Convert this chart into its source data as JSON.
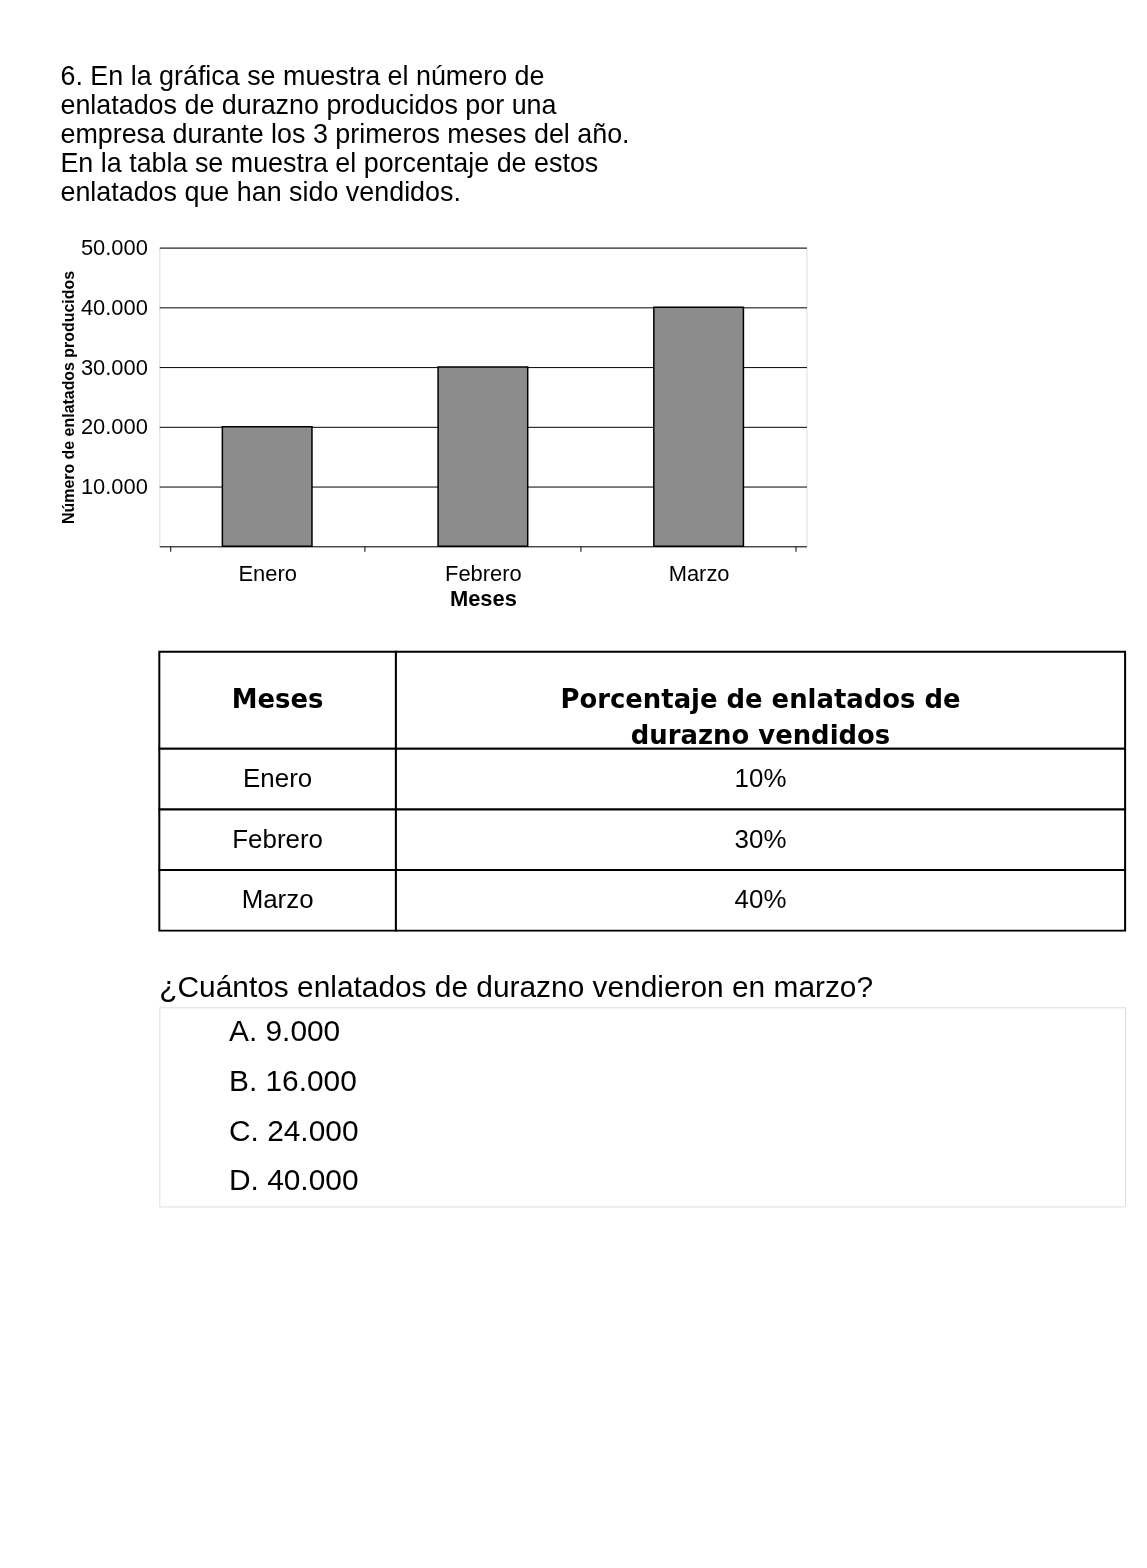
{
  "chart_data": [
    {
      "type": "bar",
      "title": "6. En la gráfica se muestra el número de enlatados de durazno producidos por una empresa durante los 3 primeros meses del año. En la tabla se muestra el porcentaje de estos enlatados que han sido vendidos.",
      "xlabel": "Meses",
      "ylabel": "Número de enlatados producidos",
      "categories": [
        "Enero",
        "Febrero",
        "Marzo"
      ],
      "values": [
        20000,
        30000,
        40000
      ],
      "color": "#8c8c8c",
      "ylim": [
        0,
        50000
      ],
      "yticks": [
        {
          "value": 10000,
          "label": "10.000"
        },
        {
          "value": 20000,
          "label": "20.000"
        },
        {
          "value": 30000,
          "label": "30.000"
        },
        {
          "value": 40000,
          "label": "40.000"
        },
        {
          "value": 50000,
          "label": "50.000"
        }
      ],
      "grid": "y"
    },
    {
      "type": "other",
      "annotations": [
        "Meses",
        "Porcentaje de enlatados de durazno vendidos",
        "Enero",
        "10%",
        "Febrero",
        "30%",
        "Marzo",
        "40%"
      ]
    },
    {
      "type": "other",
      "title": "¿Cuántos enlatados de durazno vendieron en marzo?",
      "annotations": [
        "A. 9.000",
        "B. 16.000",
        "C. 24.000",
        "D. 40.000"
      ]
    }
  ]
}
